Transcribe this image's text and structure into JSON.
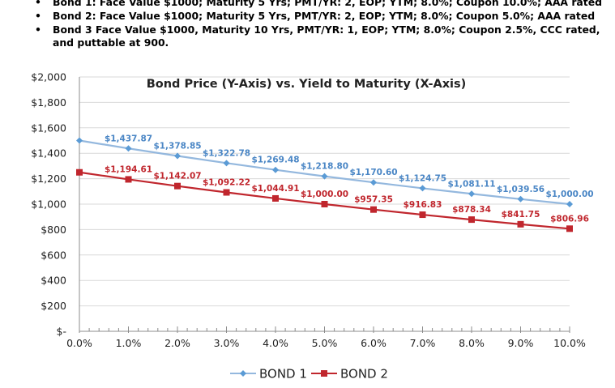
{
  "bullets": [
    {
      "lines": [
        "Bond 1: Face Value $1000; Maturity 5 Yrs; PMT/YR: 2, EOP; YTM; 8.0%; Coupon 10.0%; AAA rated"
      ]
    },
    {
      "lines": [
        "Bond 2: Face Value $1000; Maturity 5 Yrs, PMT/YR: 2, EOP; YTM; 8.0%; Coupon 5.0%; AAA rated"
      ]
    },
    {
      "lines": [
        "Bond 3 Face Value $1000, Maturity 10 Yrs, PMT/YR: 1, EOP; YTM; 8.0%; Coupon 2.5%, CCC rated,",
        "and puttable at 900."
      ]
    }
  ],
  "colors": {
    "bond1": "#94B8DE",
    "bond1_label": "#4A86C5",
    "bond2": "#C0262D",
    "grid": "#D9D9D9"
  },
  "chart_data": {
    "type": "line",
    "title": "Bond Price (Y-Axis) vs. Yield to Maturity (X-Axis)",
    "x": [
      0,
      1,
      2,
      3,
      4,
      5,
      6,
      7,
      8,
      9,
      10
    ],
    "x_tick_labels": [
      "0.0%",
      "1.0%",
      "2.0%",
      "3.0%",
      "4.0%",
      "5.0%",
      "6.0%",
      "7.0%",
      "8.0%",
      "9.0%",
      "10.0%"
    ],
    "y_tick_labels": [
      "$-",
      "$200",
      "$400",
      "$600",
      "$800",
      "$1,000",
      "$1,200",
      "$1,400",
      "$1,600",
      "$1,800",
      "$2,000"
    ],
    "xlim": [
      0,
      10
    ],
    "ylim": [
      0,
      2000
    ],
    "grid": "horizontal",
    "legend": "bottom",
    "series": [
      {
        "name": "BOND 1",
        "values": [
          1500,
          1437.87,
          1378.85,
          1322.78,
          1269.48,
          1218.8,
          1170.6,
          1124.75,
          1081.11,
          1039.56,
          1000.0
        ],
        "labels": [
          "",
          "$1,437.87",
          "$1,378.85",
          "$1,322.78",
          "$1,269.48",
          "$1,218.80",
          "$1,170.60",
          "$1,124.75",
          "$1,081.11",
          "$1,039.56",
          "$1,000.00"
        ]
      },
      {
        "name": "BOND 2",
        "values": [
          1250,
          1194.61,
          1142.07,
          1092.22,
          1044.91,
          1000.0,
          957.35,
          916.83,
          878.34,
          841.75,
          806.96
        ],
        "labels": [
          "",
          "$1,194.61",
          "$1,142.07",
          "$1,092.22",
          "$1,044.91",
          "$1,000.00",
          "$957.35",
          "$916.83",
          "$878.34",
          "$841.75",
          "$806.96"
        ]
      }
    ]
  }
}
